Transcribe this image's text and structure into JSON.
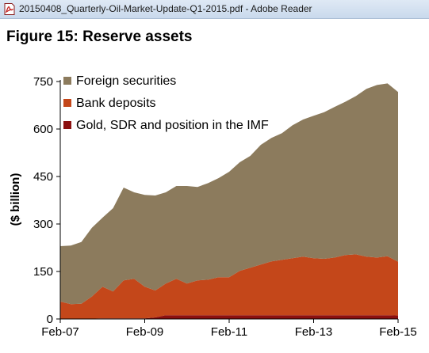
{
  "window": {
    "title": "20150408_Quarterly-Oil-Market-Update-Q1-2015.pdf - Adobe Reader",
    "icon": "pdf-icon"
  },
  "figure": {
    "title": "Figure 15: Reserve assets"
  },
  "colors": {
    "foreign_securities": "#8c7b5d",
    "bank_deposits": "#c4471a",
    "gold_sdr_imf": "#8b1010"
  },
  "chart_data": {
    "type": "area",
    "stacked": true,
    "ylabel": "($ billion)",
    "xlabel": "",
    "ylim": [
      0,
      750
    ],
    "yticks": [
      0,
      150,
      300,
      450,
      600,
      750
    ],
    "xticks": [
      "Feb-07",
      "Feb-09",
      "Feb-11",
      "Feb-13",
      "Feb-15"
    ],
    "xlim": [
      "2007-02",
      "2015-02"
    ],
    "legend_position": "top-left",
    "grid": false,
    "x": [
      "2007-02",
      "2007-05",
      "2007-08",
      "2007-11",
      "2008-02",
      "2008-05",
      "2008-08",
      "2008-11",
      "2009-02",
      "2009-05",
      "2009-08",
      "2009-11",
      "2010-02",
      "2010-05",
      "2010-08",
      "2010-11",
      "2011-02",
      "2011-05",
      "2011-08",
      "2011-11",
      "2012-02",
      "2012-05",
      "2012-08",
      "2012-11",
      "2013-02",
      "2013-05",
      "2013-08",
      "2013-11",
      "2014-02",
      "2014-05",
      "2014-08",
      "2014-11",
      "2015-02"
    ],
    "series": [
      {
        "name": "Gold, SDR and position in the IMF",
        "values": [
          1,
          1,
          1,
          1,
          2,
          2,
          2,
          2,
          2,
          5,
          12,
          12,
          12,
          12,
          12,
          12,
          12,
          12,
          12,
          12,
          12,
          12,
          12,
          12,
          12,
          12,
          12,
          12,
          12,
          12,
          12,
          12,
          11
        ]
      },
      {
        "name": "Bank deposits",
        "values": [
          54,
          46,
          47,
          70,
          100,
          85,
          120,
          125,
          100,
          85,
          100,
          115,
          100,
          110,
          112,
          120,
          120,
          140,
          150,
          160,
          170,
          175,
          180,
          185,
          180,
          178,
          182,
          190,
          192,
          185,
          182,
          186,
          170
        ]
      },
      {
        "name": "Foreign securities",
        "values": [
          175,
          185,
          195,
          217,
          218,
          263,
          293,
          273,
          290,
          300,
          288,
          293,
          308,
          295,
          305,
          313,
          333,
          343,
          353,
          378,
          390,
          400,
          420,
          433,
          450,
          463,
          476,
          484,
          500,
          530,
          545,
          546,
          536
        ]
      }
    ]
  }
}
